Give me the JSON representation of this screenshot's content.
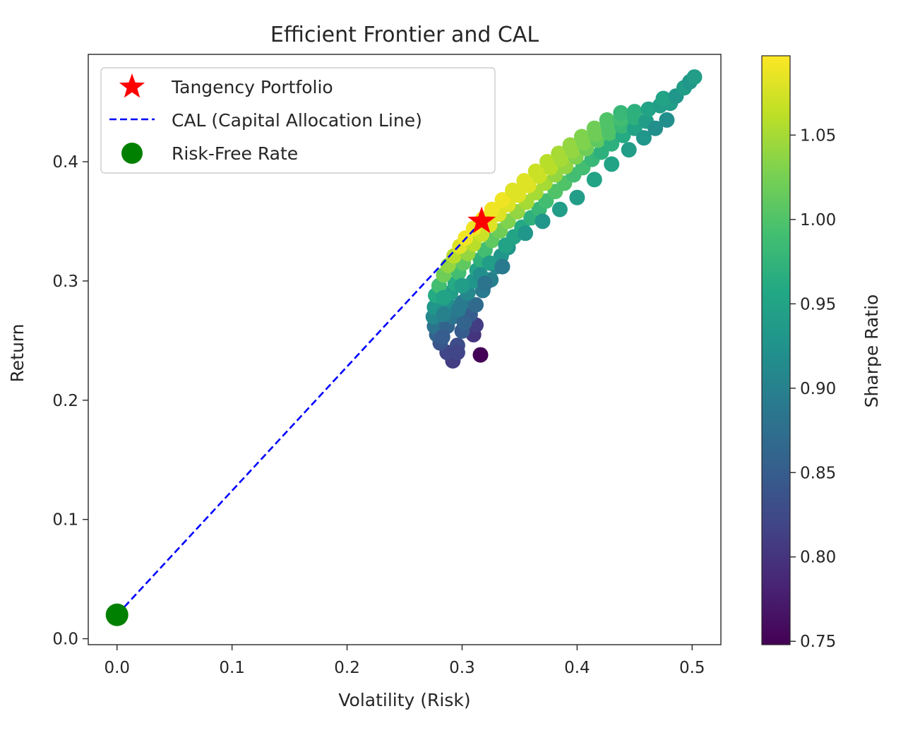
{
  "chart_data": {
    "type": "scatter",
    "title": "Efficient Frontier and CAL",
    "xlabel": "Volatility (Risk)",
    "ylabel": "Return",
    "xlim": [
      -0.025,
      0.525
    ],
    "ylim": [
      -0.005,
      0.49
    ],
    "x_ticks": [
      {
        "value": 0.0,
        "label": "0.0"
      },
      {
        "value": 0.1,
        "label": "0.1"
      },
      {
        "value": 0.2,
        "label": "0.2"
      },
      {
        "value": 0.3,
        "label": "0.3"
      },
      {
        "value": 0.4,
        "label": "0.4"
      },
      {
        "value": 0.5,
        "label": "0.5"
      }
    ],
    "y_ticks": [
      {
        "value": 0.0,
        "label": "0.0"
      },
      {
        "value": 0.1,
        "label": "0.1"
      },
      {
        "value": 0.2,
        "label": "0.2"
      },
      {
        "value": 0.3,
        "label": "0.3"
      },
      {
        "value": 0.4,
        "label": "0.4"
      }
    ],
    "grid": false,
    "legend_position": "upper-left",
    "colorbar": {
      "label": "Sharpe Ratio",
      "colormap": "viridis",
      "range": [
        0.748,
        1.097
      ],
      "ticks": [
        {
          "value": 0.75,
          "label": "0.75"
        },
        {
          "value": 0.8,
          "label": "0.80"
        },
        {
          "value": 0.85,
          "label": "0.85"
        },
        {
          "value": 0.9,
          "label": "0.90"
        },
        {
          "value": 0.95,
          "label": "0.95"
        },
        {
          "value": 1.0,
          "label": "1.00"
        },
        {
          "value": 1.05,
          "label": "1.05"
        }
      ]
    },
    "series": [
      {
        "name": "Tangency Portfolio",
        "kind": "star",
        "color": "#ff0000",
        "points": [
          [
            0.317,
            0.35
          ]
        ]
      },
      {
        "name": "CAL (Capital Allocation Line)",
        "kind": "dashed-line",
        "color": "#0000ff",
        "points": [
          [
            0.0,
            0.02
          ],
          [
            0.317,
            0.35
          ]
        ]
      },
      {
        "name": "Risk-Free Rate",
        "kind": "dot",
        "color": "#008000",
        "points": [
          [
            0.0,
            0.02
          ]
        ]
      }
    ],
    "portfolios": [
      [
        0.292,
        0.233,
        0.81
      ],
      [
        0.316,
        0.238,
        0.75
      ],
      [
        0.287,
        0.24,
        0.82
      ],
      [
        0.281,
        0.248,
        0.84
      ],
      [
        0.296,
        0.246,
        0.83
      ],
      [
        0.31,
        0.255,
        0.8
      ],
      [
        0.278,
        0.255,
        0.86
      ],
      [
        0.3,
        0.258,
        0.85
      ],
      [
        0.276,
        0.262,
        0.88
      ],
      [
        0.287,
        0.262,
        0.86
      ],
      [
        0.312,
        0.263,
        0.81
      ],
      [
        0.275,
        0.27,
        0.91
      ],
      [
        0.292,
        0.27,
        0.88
      ],
      [
        0.307,
        0.272,
        0.85
      ],
      [
        0.276,
        0.278,
        0.93
      ],
      [
        0.288,
        0.28,
        0.92
      ],
      [
        0.3,
        0.282,
        0.89
      ],
      [
        0.312,
        0.28,
        0.87
      ],
      [
        0.277,
        0.288,
        0.96
      ],
      [
        0.29,
        0.29,
        0.94
      ],
      [
        0.305,
        0.29,
        0.91
      ],
      [
        0.318,
        0.292,
        0.89
      ],
      [
        0.28,
        0.296,
        0.99
      ],
      [
        0.294,
        0.298,
        0.96
      ],
      [
        0.31,
        0.3,
        0.93
      ],
      [
        0.325,
        0.301,
        0.9
      ],
      [
        0.284,
        0.305,
        1.02
      ],
      [
        0.297,
        0.307,
        0.99
      ],
      [
        0.313,
        0.309,
        0.95
      ],
      [
        0.33,
        0.312,
        0.91
      ],
      [
        0.288,
        0.313,
        1.04
      ],
      [
        0.301,
        0.315,
        1.01
      ],
      [
        0.316,
        0.318,
        0.97
      ],
      [
        0.334,
        0.321,
        0.93
      ],
      [
        0.293,
        0.321,
        1.06
      ],
      [
        0.305,
        0.323,
        1.04
      ],
      [
        0.32,
        0.326,
        0.99
      ],
      [
        0.34,
        0.328,
        0.93
      ],
      [
        0.298,
        0.329,
        1.08
      ],
      [
        0.31,
        0.331,
        1.06
      ],
      [
        0.326,
        0.334,
        1.01
      ],
      [
        0.345,
        0.337,
        0.95
      ],
      [
        0.303,
        0.336,
        1.09
      ],
      [
        0.317,
        0.339,
        1.07
      ],
      [
        0.333,
        0.342,
        1.02
      ],
      [
        0.352,
        0.345,
        0.96
      ],
      [
        0.31,
        0.344,
        1.09
      ],
      [
        0.324,
        0.347,
        1.08
      ],
      [
        0.34,
        0.35,
        1.03
      ],
      [
        0.36,
        0.353,
        0.97
      ],
      [
        0.318,
        0.352,
        1.09
      ],
      [
        0.332,
        0.356,
        1.08
      ],
      [
        0.348,
        0.358,
        1.04
      ],
      [
        0.367,
        0.36,
        0.98
      ],
      [
        0.326,
        0.36,
        1.09
      ],
      [
        0.34,
        0.364,
        1.08
      ],
      [
        0.356,
        0.366,
        1.05
      ],
      [
        0.373,
        0.367,
        0.99
      ],
      [
        0.335,
        0.368,
        1.09
      ],
      [
        0.349,
        0.372,
        1.08
      ],
      [
        0.364,
        0.374,
        1.05
      ],
      [
        0.381,
        0.375,
        1.0
      ],
      [
        0.344,
        0.376,
        1.08
      ],
      [
        0.358,
        0.38,
        1.08
      ],
      [
        0.372,
        0.382,
        1.05
      ],
      [
        0.389,
        0.382,
        1.0
      ],
      [
        0.354,
        0.384,
        1.08
      ],
      [
        0.367,
        0.388,
        1.07
      ],
      [
        0.381,
        0.389,
        1.04
      ],
      [
        0.397,
        0.389,
        0.99
      ],
      [
        0.364,
        0.392,
        1.07
      ],
      [
        0.377,
        0.395,
        1.06
      ],
      [
        0.39,
        0.396,
        1.04
      ],
      [
        0.405,
        0.395,
        0.99
      ],
      [
        0.374,
        0.4,
        1.06
      ],
      [
        0.386,
        0.402,
        1.05
      ],
      [
        0.399,
        0.404,
        1.03
      ],
      [
        0.413,
        0.402,
        0.98
      ],
      [
        0.384,
        0.407,
        1.05
      ],
      [
        0.396,
        0.409,
        1.04
      ],
      [
        0.408,
        0.411,
        1.02
      ],
      [
        0.421,
        0.408,
        0.97
      ],
      [
        0.394,
        0.414,
        1.04
      ],
      [
        0.406,
        0.416,
        1.03
      ],
      [
        0.418,
        0.418,
        1.01
      ],
      [
        0.43,
        0.415,
        0.97
      ],
      [
        0.404,
        0.421,
        1.03
      ],
      [
        0.416,
        0.423,
        1.02
      ],
      [
        0.428,
        0.424,
        1.0
      ],
      [
        0.44,
        0.422,
        0.96
      ],
      [
        0.415,
        0.428,
        1.02
      ],
      [
        0.427,
        0.43,
        1.0
      ],
      [
        0.439,
        0.43,
        0.98
      ],
      [
        0.45,
        0.428,
        0.95
      ],
      [
        0.426,
        0.435,
        1.0
      ],
      [
        0.438,
        0.436,
        0.99
      ],
      [
        0.45,
        0.437,
        0.97
      ],
      [
        0.46,
        0.434,
        0.94
      ],
      [
        0.438,
        0.441,
        0.98
      ],
      [
        0.45,
        0.442,
        0.97
      ],
      [
        0.462,
        0.444,
        0.95
      ],
      [
        0.472,
        0.447,
        0.94
      ],
      [
        0.481,
        0.449,
        0.94
      ],
      [
        0.475,
        0.453,
        0.95
      ],
      [
        0.486,
        0.455,
        0.93
      ],
      [
        0.493,
        0.462,
        0.94
      ],
      [
        0.498,
        0.467,
        0.93
      ],
      [
        0.502,
        0.471,
        0.94
      ],
      [
        0.296,
        0.24,
        0.82
      ],
      [
        0.283,
        0.253,
        0.85
      ],
      [
        0.302,
        0.265,
        0.86
      ],
      [
        0.284,
        0.272,
        0.9
      ],
      [
        0.297,
        0.276,
        0.89
      ],
      [
        0.284,
        0.286,
        0.95
      ],
      [
        0.3,
        0.296,
        0.94
      ],
      [
        0.316,
        0.305,
        0.92
      ],
      [
        0.324,
        0.315,
        0.94
      ],
      [
        0.338,
        0.33,
        0.95
      ],
      [
        0.355,
        0.34,
        0.93
      ],
      [
        0.37,
        0.35,
        0.93
      ],
      [
        0.385,
        0.36,
        0.94
      ],
      [
        0.4,
        0.37,
        0.94
      ],
      [
        0.415,
        0.385,
        0.95
      ],
      [
        0.43,
        0.398,
        0.95
      ],
      [
        0.445,
        0.41,
        0.94
      ],
      [
        0.458,
        0.42,
        0.93
      ],
      [
        0.468,
        0.428,
        0.92
      ],
      [
        0.478,
        0.435,
        0.92
      ],
      [
        0.335,
        0.312,
        0.89
      ],
      [
        0.32,
        0.298,
        0.88
      ]
    ]
  }
}
